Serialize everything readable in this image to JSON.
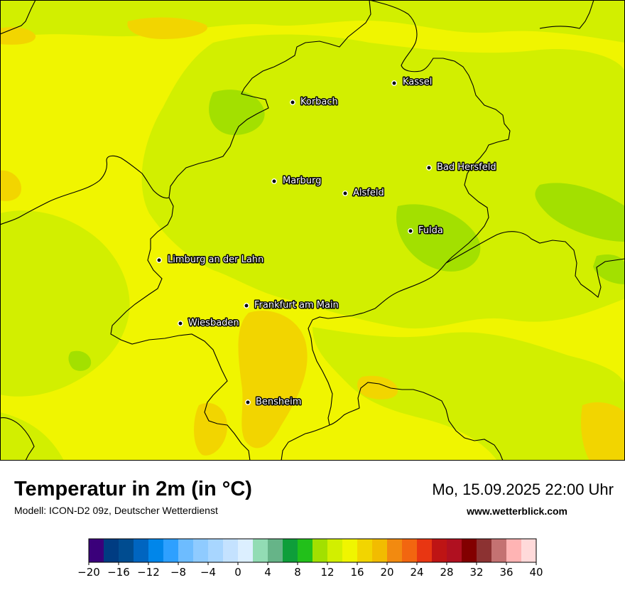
{
  "map": {
    "cities": [
      {
        "name": "Kassel"
      },
      {
        "name": "Korbach"
      },
      {
        "name": "Bad Hersfeld"
      },
      {
        "name": "Marburg"
      },
      {
        "name": "Alsfeld"
      },
      {
        "name": "Fulda"
      },
      {
        "name": "Limburg an der Lahn"
      },
      {
        "name": "Frankfurt am Main"
      },
      {
        "name": "Wiesbaden"
      },
      {
        "name": "Bensheim"
      }
    ],
    "colors": {
      "base": "#f0f500",
      "light_green": "#d2ef00",
      "green": "#a3e000",
      "orange_yellow": "#f2d500",
      "border": "#000000"
    }
  },
  "footer": {
    "title": "Temperatur in 2m (in °C)",
    "model": "Modell: ICON-D2 09z, Deutscher Wetterdienst",
    "datetime": "Mo, 15.09.2025 22:00 Uhr",
    "website": "www.wetterblick.com"
  },
  "legend": {
    "min": -20,
    "max": 40,
    "step": 2,
    "tick_labels": [
      "−20",
      "−16",
      "−12",
      "−8",
      "−4",
      "0",
      "4",
      "8",
      "12",
      "16",
      "20",
      "24",
      "28",
      "32",
      "36",
      "40"
    ],
    "colors": [
      "#3a007a",
      "#003c82",
      "#004c90",
      "#0065c0",
      "#0086ea",
      "#2ea0ff",
      "#6dbcff",
      "#8fcbff",
      "#a8d6ff",
      "#c4e2ff",
      "#dcefff",
      "#92dcb4",
      "#66b488",
      "#0e9e3a",
      "#22c01a",
      "#a2e000",
      "#d2ef00",
      "#f0f500",
      "#f2d500",
      "#f2bc00",
      "#f28a10",
      "#f26610",
      "#e83612",
      "#be1414",
      "#b01020",
      "#820000",
      "#8c3232",
      "#c47272",
      "#ffb4b4",
      "#ffdada"
    ]
  }
}
